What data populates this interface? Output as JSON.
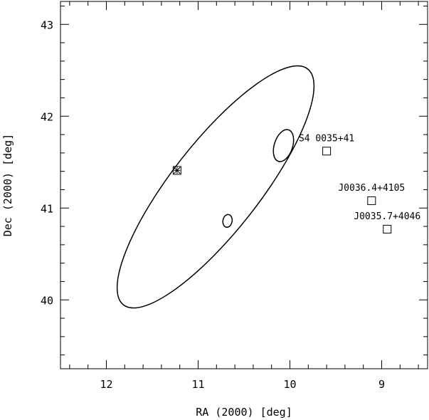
{
  "chart_data": {
    "type": "scatter",
    "xlabel": "RA (2000) [deg]",
    "ylabel": "Dec (2000) [deg]",
    "xlim": [
      12.5,
      8.5
    ],
    "ylim": [
      39.25,
      43.25
    ],
    "x_ticks": [
      12,
      11,
      10,
      9
    ],
    "y_ticks": [
      40,
      41,
      42,
      43
    ],
    "grid": false,
    "sources": [
      {
        "label": "S4 0035+41",
        "ra": 9.6,
        "dec": 41.62,
        "marker": "square"
      },
      {
        "label": "J0036.4+4105",
        "ra": 9.11,
        "dec": 41.08,
        "marker": "square"
      },
      {
        "label": "J0035.7+4046",
        "ra": 8.94,
        "dec": 40.77,
        "marker": "square"
      },
      {
        "label": "",
        "ra": 11.23,
        "dec": 41.41,
        "marker": "asterisk-square"
      }
    ],
    "ellipses": [
      {
        "ra": 10.81,
        "dec": 41.23,
        "semi_major": 1.63,
        "semi_minor": 0.48,
        "angle_deg": -52
      },
      {
        "ra": 10.07,
        "dec": 41.68,
        "semi_major": 0.18,
        "semi_minor": 0.1,
        "angle_deg": -72
      },
      {
        "ra": 10.68,
        "dec": 40.86,
        "semi_major": 0.07,
        "semi_minor": 0.05,
        "angle_deg": -80
      }
    ]
  }
}
